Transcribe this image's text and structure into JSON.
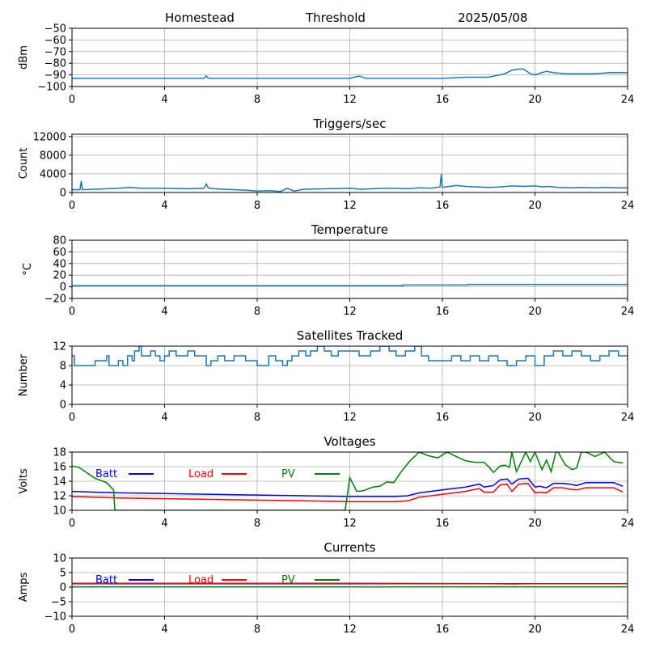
{
  "header": {
    "station": "Homestead",
    "mode": "Threshold",
    "date": "2025/05/08"
  },
  "colors": {
    "default": "#1f77b4",
    "batt": "#0000ff",
    "load": "#ff0000",
    "pv": "#008000",
    "grid": "#b0b0b0"
  },
  "chart_data": [
    {
      "id": "rssi",
      "type": "line",
      "title": "",
      "ylabel": "dBm",
      "xlim": [
        0,
        24
      ],
      "ylim": [
        -100,
        -50
      ],
      "xticks": [
        0,
        4,
        8,
        12,
        16,
        20,
        24
      ],
      "yticks": [
        -100,
        -90,
        -80,
        -70,
        -60,
        -50
      ],
      "grid": true,
      "legend": null,
      "series": [
        {
          "color": "#1f77b4",
          "x": [
            0,
            5.7,
            5.8,
            5.9,
            12,
            12.4,
            12.7,
            16,
            17,
            18,
            18.7,
            19.0,
            19.3,
            19.5,
            19.8,
            20.0,
            20.3,
            20.5,
            20.8,
            21.3,
            22.5,
            23.3,
            24
          ],
          "y": [
            -93,
            -93,
            -91,
            -93,
            -93,
            -91,
            -93,
            -93,
            -92,
            -92,
            -89,
            -86,
            -85,
            -85,
            -89,
            -90,
            -88,
            -87,
            -88,
            -89,
            -89,
            -88,
            -88
          ]
        }
      ]
    },
    {
      "id": "triggers",
      "type": "line",
      "title": "Triggers/sec",
      "ylabel": "Count",
      "xlim": [
        0,
        24
      ],
      "ylim": [
        0,
        12500
      ],
      "xticks": [
        0,
        4,
        8,
        12,
        16,
        20,
        24
      ],
      "yticks": [
        0,
        4000,
        8000,
        12000
      ],
      "grid": true,
      "legend": null,
      "series": [
        {
          "color": "#1f77b4",
          "x": [
            0,
            0.35,
            0.4,
            0.45,
            1,
            2,
            2.5,
            3,
            4,
            5,
            5.7,
            5.8,
            5.9,
            6.5,
            7,
            7.5,
            8,
            8.5,
            9,
            9.3,
            9.6,
            10,
            11,
            12,
            12.5,
            13,
            13.5,
            14,
            14.5,
            15,
            15.5,
            15.9,
            15.95,
            16.0,
            16.3,
            16.6,
            17,
            17.5,
            18,
            18.5,
            19,
            19.5,
            20,
            20.3,
            20.6,
            21,
            21.5,
            22,
            22.5,
            23,
            23.5,
            24
          ],
          "y": [
            600,
            600,
            2500,
            600,
            700,
            900,
            1100,
            900,
            900,
            800,
            900,
            1800,
            900,
            700,
            600,
            500,
            300,
            400,
            200,
            900,
            300,
            700,
            800,
            900,
            700,
            800,
            900,
            900,
            800,
            1000,
            900,
            1200,
            3900,
            1100,
            1300,
            1500,
            1300,
            1200,
            1100,
            1200,
            1400,
            1300,
            1400,
            1200,
            1300,
            1100,
            1000,
            1100,
            1000,
            1100,
            1000,
            1000
          ]
        }
      ]
    },
    {
      "id": "temperature",
      "type": "line",
      "title": "Temperature",
      "ylabel": "°C",
      "xlim": [
        0,
        24
      ],
      "ylim": [
        -20,
        80
      ],
      "xticks": [
        0,
        4,
        8,
        12,
        16,
        20,
        24
      ],
      "yticks": [
        -20,
        0,
        20,
        40,
        60,
        80
      ],
      "grid": true,
      "legend": null,
      "series": [
        {
          "color": "#1f77b4",
          "x": [
            0,
            14.3,
            14.3,
            17.1,
            17.1,
            24
          ],
          "y": [
            2,
            2,
            3,
            3,
            4,
            4
          ]
        }
      ]
    },
    {
      "id": "satellites",
      "type": "line",
      "title": "Satellites Tracked",
      "ylabel": "Number",
      "xlim": [
        0,
        24
      ],
      "ylim": [
        0,
        12
      ],
      "xticks": [
        0,
        4,
        8,
        12,
        16,
        20,
        24
      ],
      "yticks": [
        0,
        4,
        8,
        12
      ],
      "grid": true,
      "legend": null,
      "step": true,
      "series": [
        {
          "color": "#1f77b4",
          "x": [
            0,
            0.1,
            1.0,
            1.5,
            1.6,
            2.0,
            2.2,
            2.4,
            2.6,
            2.7,
            2.9,
            3.0,
            3.4,
            3.6,
            3.8,
            4.0,
            4.2,
            4.5,
            5.0,
            5.3,
            5.8,
            6.0,
            6.3,
            6.6,
            7.0,
            7.5,
            8.0,
            8.5,
            8.8,
            9.1,
            9.3,
            9.5,
            9.8,
            10.1,
            10.3,
            10.6,
            10.9,
            11.2,
            11.5,
            12.0,
            12.4,
            12.9,
            13.3,
            13.7,
            14.0,
            14.4,
            14.8,
            15.1,
            15.4,
            16.0,
            16.4,
            16.8,
            17.2,
            17.6,
            18.0,
            18.4,
            18.8,
            19.2,
            19.6,
            20.0,
            20.4,
            20.8,
            21.2,
            21.6,
            22.0,
            22.4,
            22.8,
            23.2,
            23.6,
            24
          ],
          "y": [
            10,
            8,
            9,
            10,
            8,
            9,
            8,
            10,
            9,
            11,
            12,
            10,
            11,
            10,
            9,
            10,
            11,
            10,
            11,
            10,
            8,
            9,
            10,
            9,
            10,
            9,
            8,
            10,
            9,
            8,
            9,
            10,
            11,
            10,
            11,
            12,
            11,
            10,
            11,
            11,
            10,
            11,
            12,
            11,
            10,
            11,
            12,
            10,
            9,
            9,
            10,
            9,
            10,
            9,
            10,
            9,
            8,
            9,
            10,
            8,
            10,
            11,
            10,
            11,
            10,
            9,
            10,
            11,
            10,
            9
          ]
        }
      ]
    },
    {
      "id": "voltages",
      "type": "line",
      "title": "Voltages",
      "ylabel": "Volts",
      "xlim": [
        0,
        24
      ],
      "ylim": [
        10,
        18
      ],
      "xticks": [
        0,
        4,
        8,
        12,
        16,
        20,
        24
      ],
      "yticks": [
        10,
        12,
        14,
        16,
        18
      ],
      "grid": true,
      "legend": "top-left",
      "series": [
        {
          "name": "Batt",
          "color": "#0000ff",
          "x": [
            0,
            2,
            4,
            6,
            8,
            10,
            12,
            13,
            14,
            14.5,
            15,
            16,
            17,
            17.6,
            17.8,
            18.2,
            18.5,
            18.8,
            19.0,
            19.3,
            19.7,
            20.0,
            20.2,
            20.5,
            20.8,
            21.2,
            21.5,
            21.8,
            22.2,
            22.6,
            23.0,
            23.4,
            23.8
          ],
          "y": [
            12.6,
            12.4,
            12.3,
            12.2,
            12.1,
            12.0,
            11.9,
            11.9,
            11.9,
            12.0,
            12.4,
            12.8,
            13.2,
            13.6,
            13.2,
            13.4,
            14.2,
            14.3,
            13.6,
            14.3,
            14.4,
            13.2,
            13.3,
            13.1,
            13.7,
            13.7,
            13.6,
            13.4,
            13.8,
            13.8,
            13.8,
            13.8,
            13.3
          ]
        },
        {
          "name": "Load",
          "color": "#ff0000",
          "x": [
            0,
            2,
            4,
            6,
            8,
            10,
            12,
            13,
            14,
            14.5,
            15,
            16,
            17,
            17.6,
            17.8,
            18.2,
            18.5,
            18.8,
            19.0,
            19.3,
            19.7,
            20.0,
            20.2,
            20.5,
            20.8,
            21.2,
            21.5,
            21.8,
            22.2,
            22.6,
            23.0,
            23.4,
            23.8
          ],
          "y": [
            11.9,
            11.7,
            11.6,
            11.5,
            11.4,
            11.3,
            11.2,
            11.2,
            11.2,
            11.3,
            11.8,
            12.2,
            12.6,
            13.0,
            12.5,
            12.5,
            13.5,
            13.6,
            12.6,
            13.6,
            13.7,
            12.4,
            12.5,
            12.4,
            13.1,
            13.1,
            12.9,
            12.8,
            13.1,
            13.1,
            13.1,
            13.1,
            12.5
          ]
        },
        {
          "name": "PV",
          "color": "#008000",
          "x": [
            0,
            0.3,
            1.0,
            1.5,
            1.8,
            1.85,
            11.8,
            12.0,
            12.3,
            12.6,
            13.0,
            13.3,
            13.6,
            13.9,
            14.2,
            14.6,
            15.0,
            15.4,
            15.8,
            16.2,
            16.6,
            17.0,
            17.4,
            17.8,
            18.0,
            18.2,
            18.5,
            18.7,
            18.9,
            19.0,
            19.2,
            19.6,
            19.8,
            20.0,
            20.3,
            20.5,
            20.7,
            20.9,
            21.0,
            21.3,
            21.6,
            21.8,
            22.0,
            22.2,
            22.6,
            23.0,
            23.4,
            23.8
          ],
          "y": [
            16.1,
            15.9,
            14.4,
            13.8,
            12.8,
            10.0,
            10.0,
            14.5,
            12.6,
            12.7,
            13.2,
            13.3,
            13.9,
            13.8,
            15.2,
            16.8,
            18.0,
            17.5,
            17.2,
            18.0,
            17.4,
            16.8,
            16.6,
            16.6,
            16.0,
            15.2,
            16.1,
            16.2,
            15.9,
            18.0,
            15.3,
            18.0,
            16.7,
            18.0,
            15.6,
            16.9,
            15.3,
            18.0,
            18.0,
            16.3,
            15.6,
            15.8,
            18.0,
            18.0,
            17.4,
            18.0,
            16.7,
            16.5
          ]
        }
      ]
    },
    {
      "id": "currents",
      "type": "line",
      "title": "Currents",
      "ylabel": "Amps",
      "xlim": [
        0,
        24
      ],
      "ylim": [
        -10,
        10
      ],
      "xticks": [
        0,
        4,
        8,
        12,
        16,
        20,
        24
      ],
      "yticks": [
        -10,
        -5,
        0,
        5,
        10
      ],
      "grid": true,
      "legend": "top-left",
      "series": [
        {
          "name": "Batt",
          "color": "#0000ff",
          "x": [
            0,
            24
          ],
          "y": [
            1.2,
            1.2
          ]
        },
        {
          "name": "Load",
          "color": "#ff0000",
          "x": [
            0,
            12,
            18,
            19,
            20,
            24
          ],
          "y": [
            1.3,
            1.3,
            1.2,
            1.1,
            1.2,
            1.2
          ]
        },
        {
          "name": "PV",
          "color": "#008000",
          "x": [
            0,
            24
          ],
          "y": [
            0.1,
            0.1
          ]
        }
      ]
    }
  ]
}
